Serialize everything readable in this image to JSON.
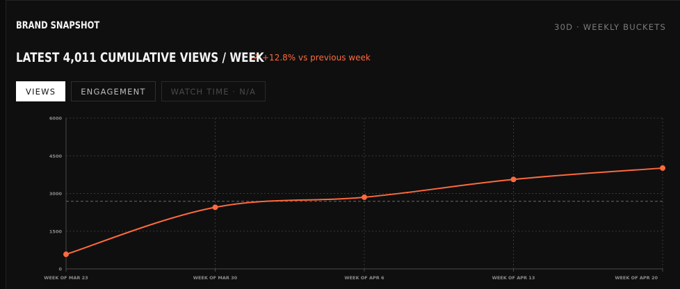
{
  "header": {
    "title": "BRAND SNAPSHOT",
    "range_label": "30D · WEEKLY BUCKETS"
  },
  "summary": {
    "headline": "LATEST 4,011 CUMULATIVE VIEWS / WEEK",
    "delta_icon": "trending-up-icon",
    "delta_text": "+12.8% vs previous week",
    "delta_color": "#ff6a3d"
  },
  "tabs": [
    {
      "label": "VIEWS",
      "state": "active"
    },
    {
      "label": "ENGAGEMENT",
      "state": "normal"
    },
    {
      "label": "WATCH TIME · N/A",
      "state": "disabled"
    }
  ],
  "colors": {
    "line": "#ff6a3d",
    "grid": "#3a3a3a",
    "reference": "#6a6a6a"
  },
  "chart_data": {
    "type": "line",
    "title": "",
    "xlabel": "",
    "ylabel": "",
    "categories": [
      "WEEK OF MAR 23",
      "WEEK OF MAR 30",
      "WEEK OF APR 6",
      "WEEK OF APR 13",
      "WEEK OF APR 20"
    ],
    "series": [
      {
        "values": [
          580,
          2450,
          2850,
          3560,
          4011
        ]
      }
    ],
    "reference_line": 2690,
    "ylim": [
      0,
      6000
    ],
    "yticks": [
      0,
      1500,
      3000,
      4500,
      6000
    ],
    "grid": true,
    "legend": "none"
  }
}
